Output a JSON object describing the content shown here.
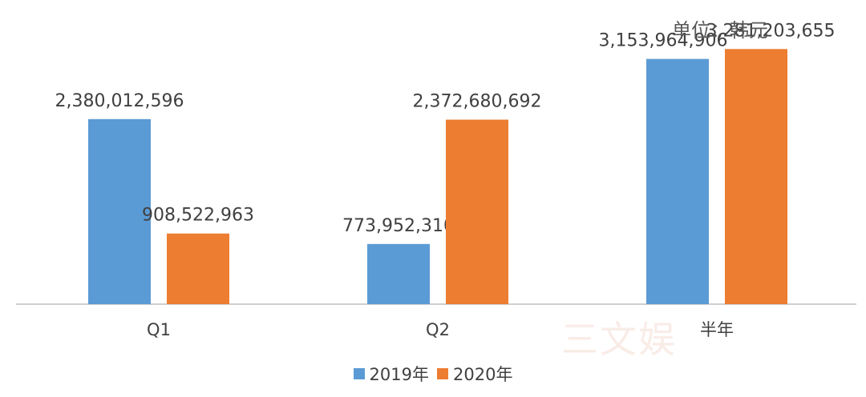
{
  "unit_label": "单位：韩元",
  "colors": {
    "series_2019": "#5b9bd5",
    "series_2020": "#ed7d31",
    "axis": "#bfbfbf",
    "label": "#404040"
  },
  "chart_data": {
    "type": "bar",
    "categories": [
      "Q1",
      "Q2",
      "半年"
    ],
    "series": [
      {
        "name": "2019年",
        "values": [
          2380012596,
          773952310,
          3153964906
        ],
        "labels": [
          "2,380,012,596",
          "773,952,310",
          "3,153,964,906"
        ]
      },
      {
        "name": "2020年",
        "values": [
          908522963,
          2372680692,
          3281203655
        ],
        "labels": [
          "908,522,963",
          "2,372,680,692",
          "3,281,203,655"
        ]
      }
    ],
    "ylim": [
      0,
      3500000000
    ],
    "legend_position": "bottom",
    "grid": false
  }
}
